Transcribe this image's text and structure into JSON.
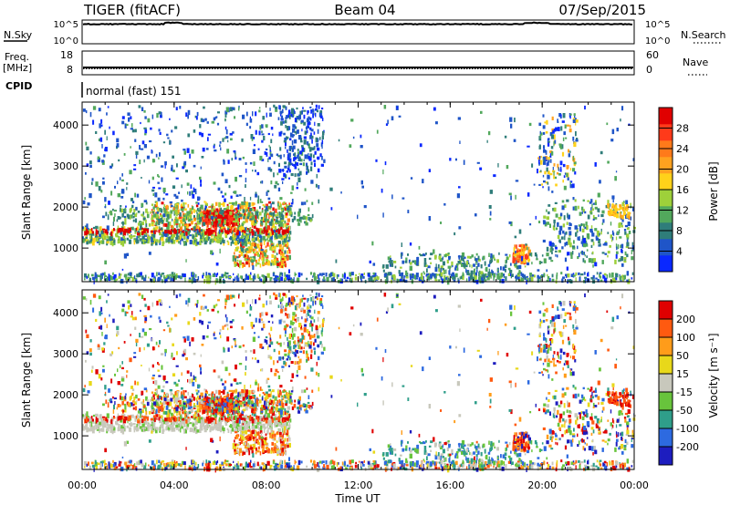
{
  "header": {
    "radar": "TIGER (fitACF)",
    "beam": "Beam 04",
    "date": "07/Sep/2015"
  },
  "top_panels": {
    "nsky": {
      "label": "N.Sky",
      "ticks": [
        "10^5",
        "10^0"
      ],
      "right_label": "N.Search",
      "right_ticks": [
        "10^5",
        "10^0"
      ]
    },
    "freq": {
      "label_top": "Freq.",
      "label_bottom": "[MHz]",
      "ticks": [
        "18",
        "8"
      ],
      "right_label": "Nave",
      "right_ticks": [
        "60",
        "0"
      ]
    },
    "cpid": {
      "label": "CPID",
      "text": "normal (fast) 151"
    }
  },
  "chart_data": [
    {
      "type": "heatmap",
      "title": "",
      "xlabel": "Time UT",
      "ylabel": "Slant Range [km]",
      "x_ticks": [
        "00:00",
        "04:00",
        "08:00",
        "12:00",
        "16:00",
        "20:00",
        "00:00"
      ],
      "y_ticks": [
        "1000",
        "2000",
        "3000",
        "4000"
      ],
      "ylim": [
        180,
        4560
      ],
      "colorbar": {
        "label": "Power [dB]",
        "ticks": [
          "4",
          "8",
          "12",
          "16",
          "20",
          "24",
          "28"
        ],
        "colors": [
          "#0a28ff",
          "#1f55c8",
          "#2f7d7a",
          "#52a85c",
          "#9ed03a",
          "#ffd21a",
          "#ffa21f",
          "#ff7a1a",
          "#ff3a1a",
          "#e00000"
        ]
      }
    },
    {
      "type": "heatmap",
      "title": "",
      "xlabel": "Time UT",
      "ylabel": "Slant Range [km]",
      "x_ticks": [
        "00:00",
        "04:00",
        "08:00",
        "12:00",
        "16:00",
        "20:00",
        "00:00"
      ],
      "y_ticks": [
        "1000",
        "2000",
        "3000",
        "4000"
      ],
      "ylim": [
        180,
        4560
      ],
      "colorbar": {
        "label": "Velocity [m s⁻¹]",
        "ticks": [
          "200",
          "100",
          "50",
          "15",
          "-15",
          "-50",
          "-100",
          "-200"
        ],
        "colors": [
          "#1d1dbf",
          "#2d6ae0",
          "#2f9e8a",
          "#68c43c",
          "#c8c8bc",
          "#e8d81a",
          "#ff9c1a",
          "#ff5a10",
          "#e00000"
        ]
      }
    }
  ]
}
